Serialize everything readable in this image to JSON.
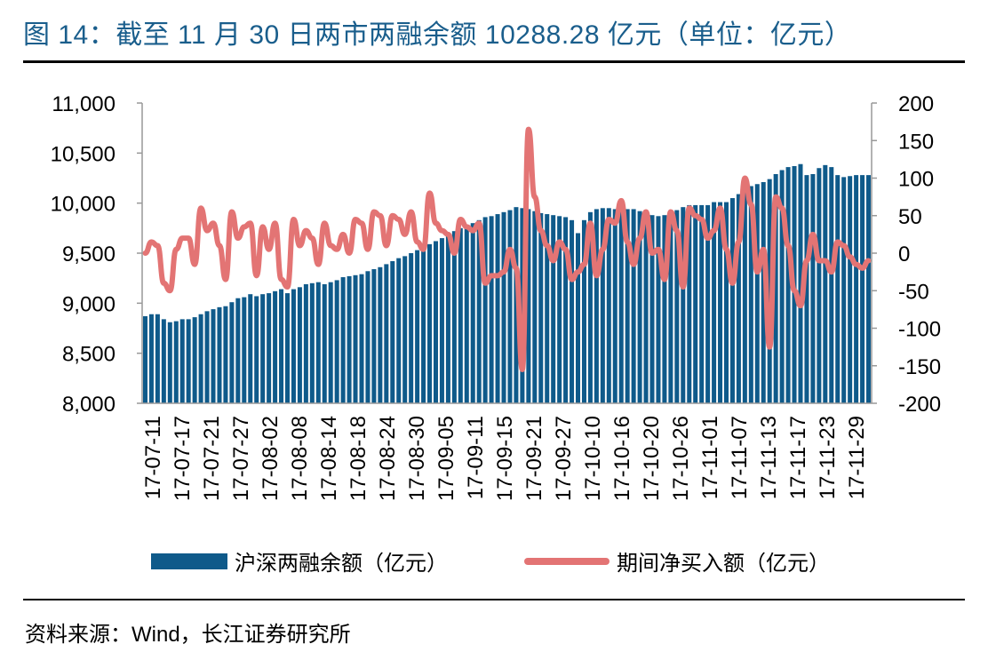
{
  "header": {
    "title": "图 14：截至 11 月 30 日两市两融余额 10288.28 亿元（单位：亿元）"
  },
  "footer": {
    "source": "资料来源：Wind，长江证券研究所"
  },
  "colors": {
    "bar": "#0f5a8a",
    "line": "#e37474",
    "axis": "#999999"
  },
  "chart_data": {
    "type": "bar+line",
    "title": "截至 11 月 30 日两市两融余额 10288.28 亿元",
    "xlabel": "",
    "ylabel": "",
    "y_left": {
      "lim": [
        8000,
        11000
      ],
      "ticks": [
        "8,000",
        "8,500",
        "9,000",
        "9,500",
        "10,000",
        "10,500",
        "11,000"
      ]
    },
    "y_right": {
      "lim": [
        -200,
        200
      ],
      "ticks": [
        "-200",
        "-150",
        "-100",
        "-50",
        "0",
        "50",
        "100",
        "150",
        "200"
      ]
    },
    "x_tick_labels": [
      "17-07-11",
      "17-07-17",
      "17-07-21",
      "17-07-27",
      "17-08-02",
      "17-08-08",
      "17-08-14",
      "17-08-18",
      "17-08-24",
      "17-08-30",
      "17-09-05",
      "17-09-11",
      "17-09-15",
      "17-09-21",
      "17-09-27",
      "17-10-10",
      "17-10-16",
      "17-10-20",
      "17-10-26",
      "17-11-01",
      "17-11-07",
      "17-11-13",
      "17-11-17",
      "17-11-23",
      "17-11-29"
    ],
    "series": [
      {
        "name": "沪深两融余额（亿元）",
        "type": "bar",
        "axis": "left",
        "values": [
          8870,
          8890,
          8890,
          8840,
          8810,
          8820,
          8840,
          8840,
          8860,
          8890,
          8920,
          8940,
          8960,
          8970,
          9010,
          9050,
          9060,
          9090,
          9070,
          9090,
          9100,
          9120,
          9140,
          9100,
          9140,
          9160,
          9190,
          9200,
          9210,
          9190,
          9210,
          9230,
          9260,
          9270,
          9280,
          9290,
          9320,
          9340,
          9360,
          9390,
          9420,
          9450,
          9470,
          9500,
          9530,
          9560,
          9590,
          9620,
          9650,
          9690,
          9720,
          9750,
          9760,
          9800,
          9830,
          9860,
          9870,
          9890,
          9910,
          9930,
          9960,
          9950,
          9940,
          9920,
          9900,
          9890,
          9880,
          9870,
          9860,
          9830,
          9700,
          9830,
          9910,
          9940,
          9950,
          9950,
          9940,
          9940,
          9940,
          9940,
          9920,
          9900,
          9880,
          9870,
          9880,
          9900,
          9930,
          9960,
          9980,
          9980,
          9980,
          9980,
          10010,
          10010,
          10010,
          10050,
          10090,
          10140,
          10170,
          10190,
          10210,
          10240,
          10290,
          10330,
          10360,
          10370,
          10390,
          10280,
          10290,
          10350,
          10380,
          10360,
          10280,
          10260,
          10270,
          10280,
          10280,
          10280
        ]
      },
      {
        "name": "期间净买入额（亿元）",
        "type": "line",
        "axis": "right",
        "values": [
          0,
          15,
          10,
          -40,
          -50,
          5,
          20,
          20,
          -15,
          60,
          30,
          40,
          10,
          -35,
          55,
          20,
          35,
          40,
          -30,
          35,
          5,
          40,
          -35,
          -45,
          45,
          10,
          30,
          20,
          -15,
          40,
          10,
          5,
          25,
          0,
          45,
          40,
          5,
          55,
          50,
          10,
          50,
          45,
          25,
          55,
          15,
          5,
          80,
          40,
          30,
          25,
          0,
          45,
          35,
          30,
          40,
          -40,
          -30,
          -30,
          -25,
          5,
          -20,
          -155,
          165,
          75,
          30,
          10,
          -10,
          15,
          5,
          -35,
          -25,
          -15,
          40,
          -30,
          5,
          45,
          40,
          70,
          15,
          -15,
          20,
          55,
          0,
          5,
          -35,
          55,
          30,
          -45,
          60,
          50,
          45,
          20,
          30,
          60,
          5,
          -40,
          15,
          100,
          65,
          -25,
          5,
          -125,
          75,
          60,
          10,
          -50,
          -70,
          -10,
          25,
          -10,
          -10,
          -25,
          15,
          10,
          -5,
          -15,
          -20,
          -10
        ]
      }
    ],
    "legend": [
      {
        "label": "沪深两融余额（亿元）",
        "kind": "bar"
      },
      {
        "label": "期间净买入额（亿元）",
        "kind": "line"
      }
    ],
    "legend_position": "bottom-center"
  }
}
